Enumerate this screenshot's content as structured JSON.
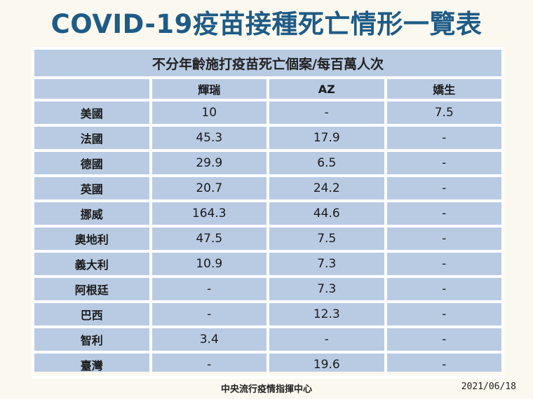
{
  "title": "COVID-19疫苗接種死亡情形一覽表",
  "table": {
    "caption": "不分年齡施打疫苗死亡個案/每百萬人次",
    "columns": [
      "",
      "輝瑞",
      "AZ",
      "嬌生"
    ],
    "rows": [
      {
        "country": "美國",
        "values": [
          "10",
          "-",
          "7.5"
        ]
      },
      {
        "country": "法國",
        "values": [
          "45.3",
          "17.9",
          "-"
        ]
      },
      {
        "country": "德國",
        "values": [
          "29.9",
          "6.5",
          "-"
        ]
      },
      {
        "country": "英國",
        "values": [
          "20.7",
          "24.2",
          "-"
        ]
      },
      {
        "country": "挪威",
        "values": [
          "164.3",
          "44.6",
          "-"
        ]
      },
      {
        "country": "奧地利",
        "values": [
          "47.5",
          "7.5",
          "-"
        ]
      },
      {
        "country": "義大利",
        "values": [
          "10.9",
          "7.3",
          "-"
        ]
      },
      {
        "country": "阿根廷",
        "values": [
          "-",
          "7.3",
          "-"
        ]
      },
      {
        "country": "巴西",
        "values": [
          "-",
          "12.3",
          "-"
        ]
      },
      {
        "country": "智利",
        "values": [
          "3.4",
          "-",
          "-"
        ]
      },
      {
        "country": "臺灣",
        "values": [
          "-",
          "19.6",
          "-"
        ]
      }
    ]
  },
  "footer": {
    "source": "中央流行疫情指揮中心",
    "date": "2021/06/18"
  },
  "colors": {
    "title": "#1e5b86",
    "table_fill": "#b9cbe3",
    "grid": "#ffffff",
    "background": "#fbf8ef"
  }
}
